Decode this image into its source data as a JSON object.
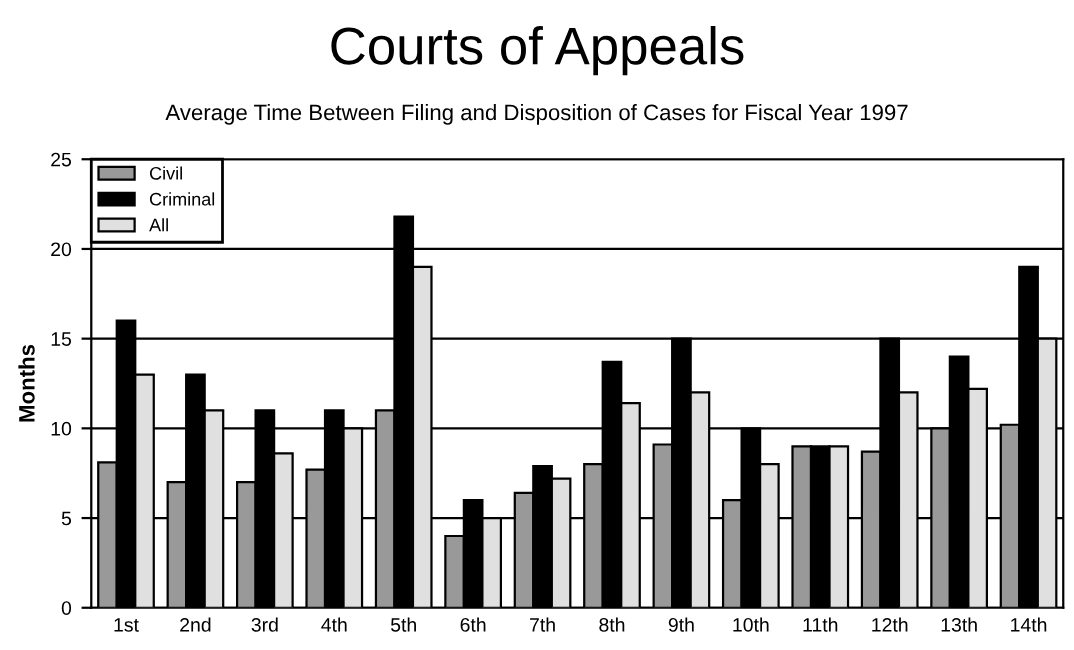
{
  "chart_data": {
    "type": "bar",
    "title": "Courts of Appeals",
    "subtitle": "Average Time Between Filing and Disposition of Cases for Fiscal Year 1997",
    "ylabel": "Months",
    "categories": [
      "1st",
      "2nd",
      "3rd",
      "4th",
      "5th",
      "6th",
      "7th",
      "8th",
      "9th",
      "10th",
      "11th",
      "12th",
      "13th",
      "14th"
    ],
    "series": [
      {
        "name": "Civil",
        "color": "#999999",
        "values": [
          8.1,
          7,
          7,
          7.7,
          11,
          4,
          6.4,
          8.0,
          9.1,
          6.0,
          9.0,
          8.7,
          10,
          10.2
        ]
      },
      {
        "name": "Criminal",
        "color": "#000000",
        "values": [
          16,
          13,
          11,
          11,
          21.8,
          6,
          7.9,
          13.7,
          15,
          10,
          9.0,
          15,
          14.0,
          19.0
        ]
      },
      {
        "name": "All",
        "color": "#e0e0e0",
        "values": [
          13,
          11,
          8.6,
          10,
          19.0,
          5,
          7.2,
          11.4,
          12.0,
          8.0,
          9.0,
          12.0,
          12.2,
          15
        ]
      }
    ],
    "ylim": [
      0,
      25
    ],
    "yticks": [
      0,
      5,
      10,
      15,
      20,
      25
    ],
    "grid": "y",
    "legend": "top left"
  }
}
